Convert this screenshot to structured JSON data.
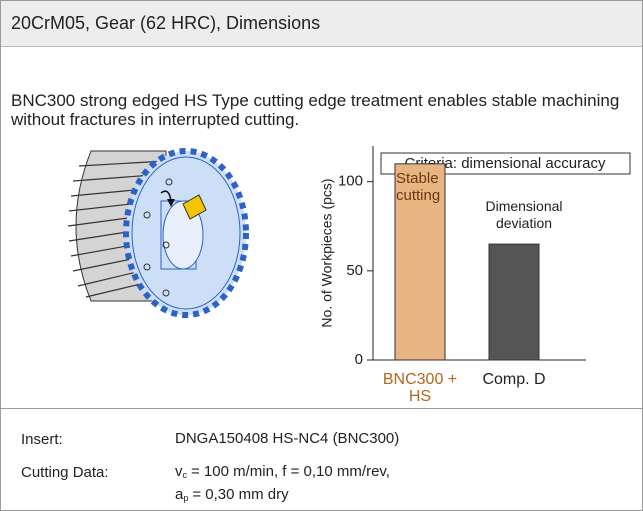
{
  "header": {
    "title": "20CrM05, Gear (62 HRC), Dimensions"
  },
  "description": "BNC300 strong edged HS Type cutting edge treatment enables stable machining without fractures in interrupted cutting.",
  "chart_data": {
    "type": "bar",
    "y_label": "No. of Workpieces (pcs)",
    "legend": "Criteria: dimensional accuracy",
    "categories": [
      "BNC300 + HS",
      "Comp. D"
    ],
    "values": [
      110,
      65
    ],
    "colors": [
      "#e8b482",
      "#555555"
    ],
    "category_colors": [
      "#b5651d",
      "#222222"
    ],
    "annotations": [
      "Stable cutting",
      "Dimensional deviation"
    ],
    "ylim": [
      0,
      120
    ],
    "yticks": [
      0,
      50,
      100
    ]
  },
  "specs": {
    "rows": [
      {
        "label": "Insert:",
        "value": "DNGA150408 HS-NC4 (BNC300)"
      },
      {
        "label": "Cutting Data:",
        "lines": [
          {
            "symbol": "v",
            "sub": "c",
            "text": "= 100 m/min, f = 0,10 mm/rev,"
          },
          {
            "symbol": "a",
            "sub": "p",
            "text": "= 0,30 mm dry"
          }
        ]
      }
    ]
  }
}
